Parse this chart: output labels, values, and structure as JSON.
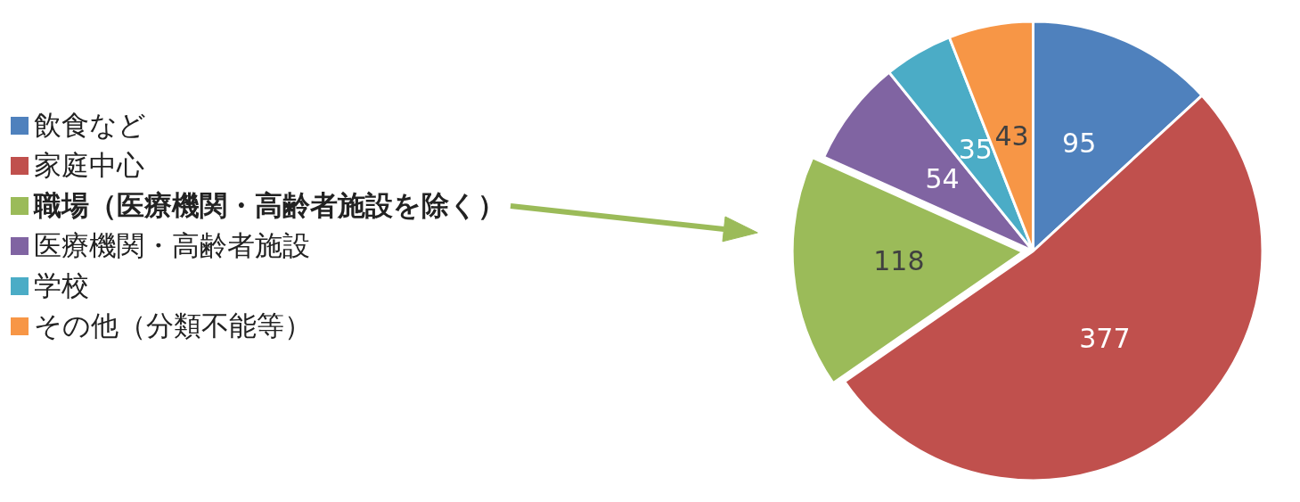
{
  "chart_data": {
    "type": "pie",
    "categories": [
      "飲食など",
      "家庭中心",
      "職場（医療機関・高齢者施設を除く）",
      "医療機関・高齢者施設",
      "学校",
      "その他（分類不能等）"
    ],
    "values": [
      95,
      377,
      118,
      54,
      35,
      43
    ],
    "colors": [
      "#4f81bd",
      "#c0504d",
      "#9bbb59",
      "#8064a2",
      "#4bacc6",
      "#f79646"
    ],
    "data_labels": true,
    "legend": "left"
  }
}
